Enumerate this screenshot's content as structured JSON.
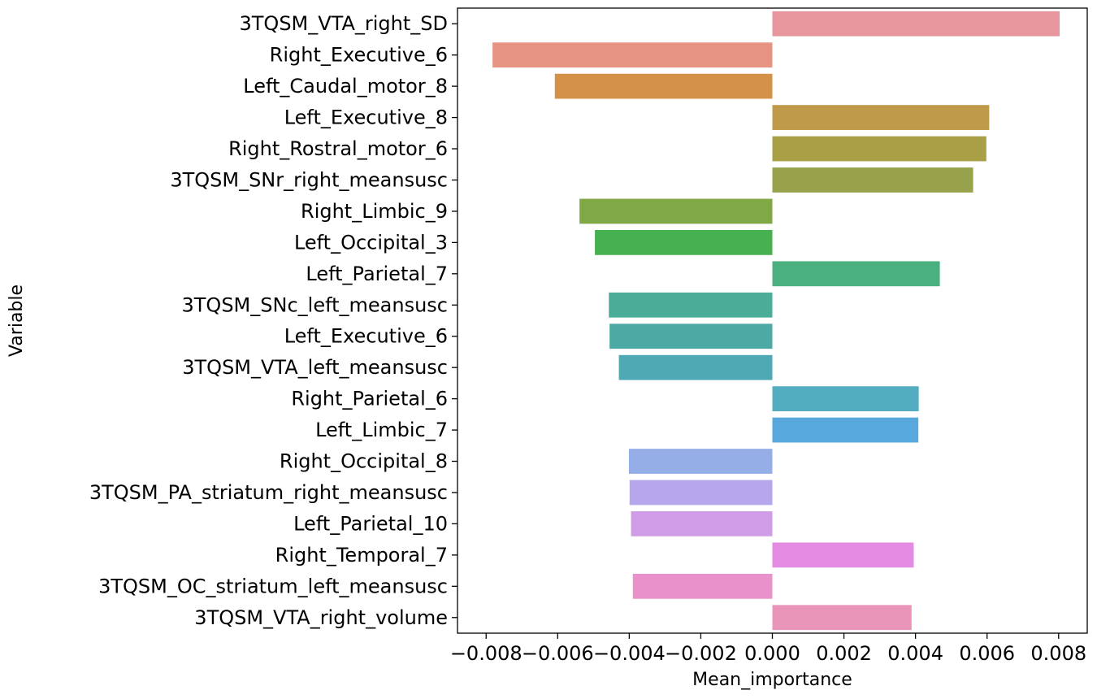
{
  "chart_data": {
    "type": "bar",
    "orientation": "horizontal",
    "xlabel": "Mean_importance",
    "ylabel": "Variable",
    "xlim": [
      -0.0088,
      0.0088
    ],
    "xticks": [
      -0.008,
      -0.006,
      -0.004,
      -0.002,
      0.0,
      0.002,
      0.004,
      0.006,
      0.008
    ],
    "xtick_labels": [
      "−0.008",
      "−0.006",
      "−0.004",
      "−0.002",
      "0.000",
      "0.002",
      "0.004",
      "0.006",
      "0.008"
    ],
    "grid": false,
    "categories": [
      "3TQSM_VTA_right_SD",
      "Right_Executive_6",
      "Left_Caudal_motor_8",
      "Left_Executive_8",
      "Right_Rostral_motor_6",
      "3TQSM_SNr_right_meansusc",
      "Right_Limbic_9",
      "Left_Occipital_3",
      "Left_Parietal_7",
      "3TQSM_SNc_left_meansusc",
      "Left_Executive_6",
      "3TQSM_VTA_left_meansusc",
      "Right_Parietal_6",
      "Left_Limbic_7",
      "Right_Occipital_8",
      "3TQSM_PA_striatum_right_meansusc",
      "Left_Parietal_10",
      "Right_Temporal_7",
      "3TQSM_OC_striatum_left_meansusc",
      "3TQSM_VTA_right_volume"
    ],
    "values": [
      0.00803,
      -0.00782,
      -0.00608,
      0.00606,
      0.00598,
      0.00561,
      -0.00539,
      -0.00496,
      0.00468,
      -0.00457,
      -0.00455,
      -0.00429,
      0.00409,
      0.00408,
      -0.00401,
      -0.00399,
      -0.00395,
      0.00395,
      -0.0039,
      0.00389
    ],
    "colors": [
      "#e8969e",
      "#e79382",
      "#d49249",
      "#bf9a4a",
      "#a89f47",
      "#98a24a",
      "#80a845",
      "#47b050",
      "#4ab080",
      "#4aad98",
      "#4ca9a4",
      "#4ea9b5",
      "#52adc1",
      "#57a8dc",
      "#95aee8",
      "#b6a6ec",
      "#d09ce8",
      "#e38ae3",
      "#e991cb",
      "#e895b9"
    ]
  }
}
